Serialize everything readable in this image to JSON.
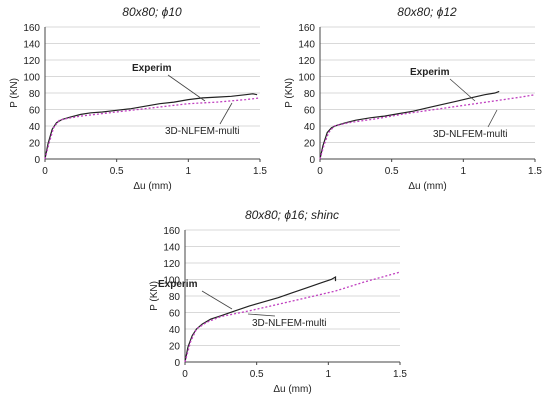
{
  "chart_data": [
    {
      "type": "line",
      "title": "80x80; ϕ10",
      "xlabel": "Δu (mm)",
      "ylabel": "P (KN)",
      "xlim": [
        0,
        1.5
      ],
      "ylim": [
        0,
        160
      ],
      "xticks": [
        "0",
        "0.5",
        "1",
        "1.5"
      ],
      "yticks": [
        "0",
        "20",
        "40",
        "60",
        "80",
        "100",
        "120",
        "140",
        "160"
      ],
      "grid": "horizontal",
      "series": [
        {
          "name": "Experim",
          "color": "#222222",
          "style": "solid",
          "x": [
            0,
            0.02,
            0.05,
            0.08,
            0.12,
            0.18,
            0.25,
            0.32,
            0.4,
            0.5,
            0.6,
            0.7,
            0.8,
            0.9,
            1.0,
            1.1,
            1.2,
            1.3,
            1.4,
            1.45,
            1.48
          ],
          "y": [
            0,
            18,
            36,
            44,
            48,
            51,
            54,
            56,
            57,
            59,
            61,
            64,
            67,
            69,
            72,
            74,
            75,
            76,
            78,
            79,
            78
          ]
        },
        {
          "name": "3D-NLFEM-multi",
          "color": "#c040c0",
          "style": "dotted",
          "x": [
            0,
            0.03,
            0.06,
            0.1,
            0.15,
            0.25,
            0.4,
            0.6,
            0.8,
            1.0,
            1.2,
            1.4,
            1.5
          ],
          "y": [
            0,
            20,
            38,
            47,
            49,
            52,
            55,
            59,
            63,
            67,
            69,
            72,
            74
          ]
        }
      ],
      "annotations": [
        {
          "text": "Experim",
          "bold": true
        },
        {
          "text": "3D-NLFEM-multi",
          "bold": false
        }
      ]
    },
    {
      "type": "line",
      "title": "80x80; ϕ12",
      "xlabel": "Δu (mm)",
      "ylabel": "P (KN)",
      "xlim": [
        0,
        1.5
      ],
      "ylim": [
        0,
        160
      ],
      "xticks": [
        "0",
        "0.5",
        "1",
        "1.5"
      ],
      "yticks": [
        "0",
        "20",
        "40",
        "60",
        "80",
        "100",
        "120",
        "140",
        "160"
      ],
      "grid": "horizontal",
      "series": [
        {
          "name": "Experim",
          "color": "#222222",
          "style": "solid",
          "x": [
            0,
            0.02,
            0.05,
            0.08,
            0.12,
            0.18,
            0.25,
            0.35,
            0.45,
            0.55,
            0.65,
            0.75,
            0.85,
            0.95,
            1.05,
            1.15,
            1.22,
            1.25
          ],
          "y": [
            0,
            16,
            32,
            38,
            41,
            44,
            47,
            50,
            52,
            55,
            58,
            62,
            66,
            70,
            74,
            78,
            80,
            82
          ]
        },
        {
          "name": "3D-NLFEM-multi",
          "color": "#c040c0",
          "style": "dotted",
          "x": [
            0,
            0.03,
            0.06,
            0.1,
            0.2,
            0.4,
            0.6,
            0.8,
            1.0,
            1.2,
            1.4,
            1.5
          ],
          "y": [
            0,
            18,
            32,
            40,
            44,
            49,
            55,
            60,
            65,
            70,
            75,
            78
          ]
        }
      ],
      "annotations": [
        {
          "text": "Experim",
          "bold": true
        },
        {
          "text": "3D-NLFEM-multi",
          "bold": false
        }
      ]
    },
    {
      "type": "line",
      "title": "80x80; ϕ16; shinc",
      "xlabel": "Δu (mm)",
      "ylabel": "P (KN)",
      "xlim": [
        0,
        1.5
      ],
      "ylim": [
        0,
        160
      ],
      "xticks": [
        "0",
        "0.5",
        "1",
        "1.5"
      ],
      "yticks": [
        "0",
        "20",
        "40",
        "60",
        "80",
        "100",
        "120",
        "140",
        "160"
      ],
      "grid": "horizontal",
      "series": [
        {
          "name": "Experim",
          "color": "#222222",
          "style": "solid",
          "x": [
            0,
            0.02,
            0.05,
            0.08,
            0.12,
            0.18,
            0.25,
            0.35,
            0.45,
            0.55,
            0.65,
            0.75,
            0.85,
            0.95,
            1.02,
            1.05,
            1.05
          ],
          "y": [
            0,
            18,
            32,
            40,
            46,
            52,
            56,
            62,
            68,
            73,
            78,
            84,
            90,
            96,
            100,
            103,
            98
          ]
        },
        {
          "name": "3D-NLFEM-multi",
          "color": "#c040c0",
          "style": "dotted",
          "x": [
            0,
            0.04,
            0.08,
            0.15,
            0.25,
            0.45,
            0.65,
            0.85,
            1.05,
            1.25,
            1.5
          ],
          "y": [
            0,
            25,
            40,
            48,
            55,
            62,
            70,
            78,
            86,
            97,
            109
          ]
        }
      ],
      "annotations": [
        {
          "text": "Experim",
          "bold": true
        },
        {
          "text": "3D-NLFEM-multi",
          "bold": false
        }
      ]
    }
  ]
}
